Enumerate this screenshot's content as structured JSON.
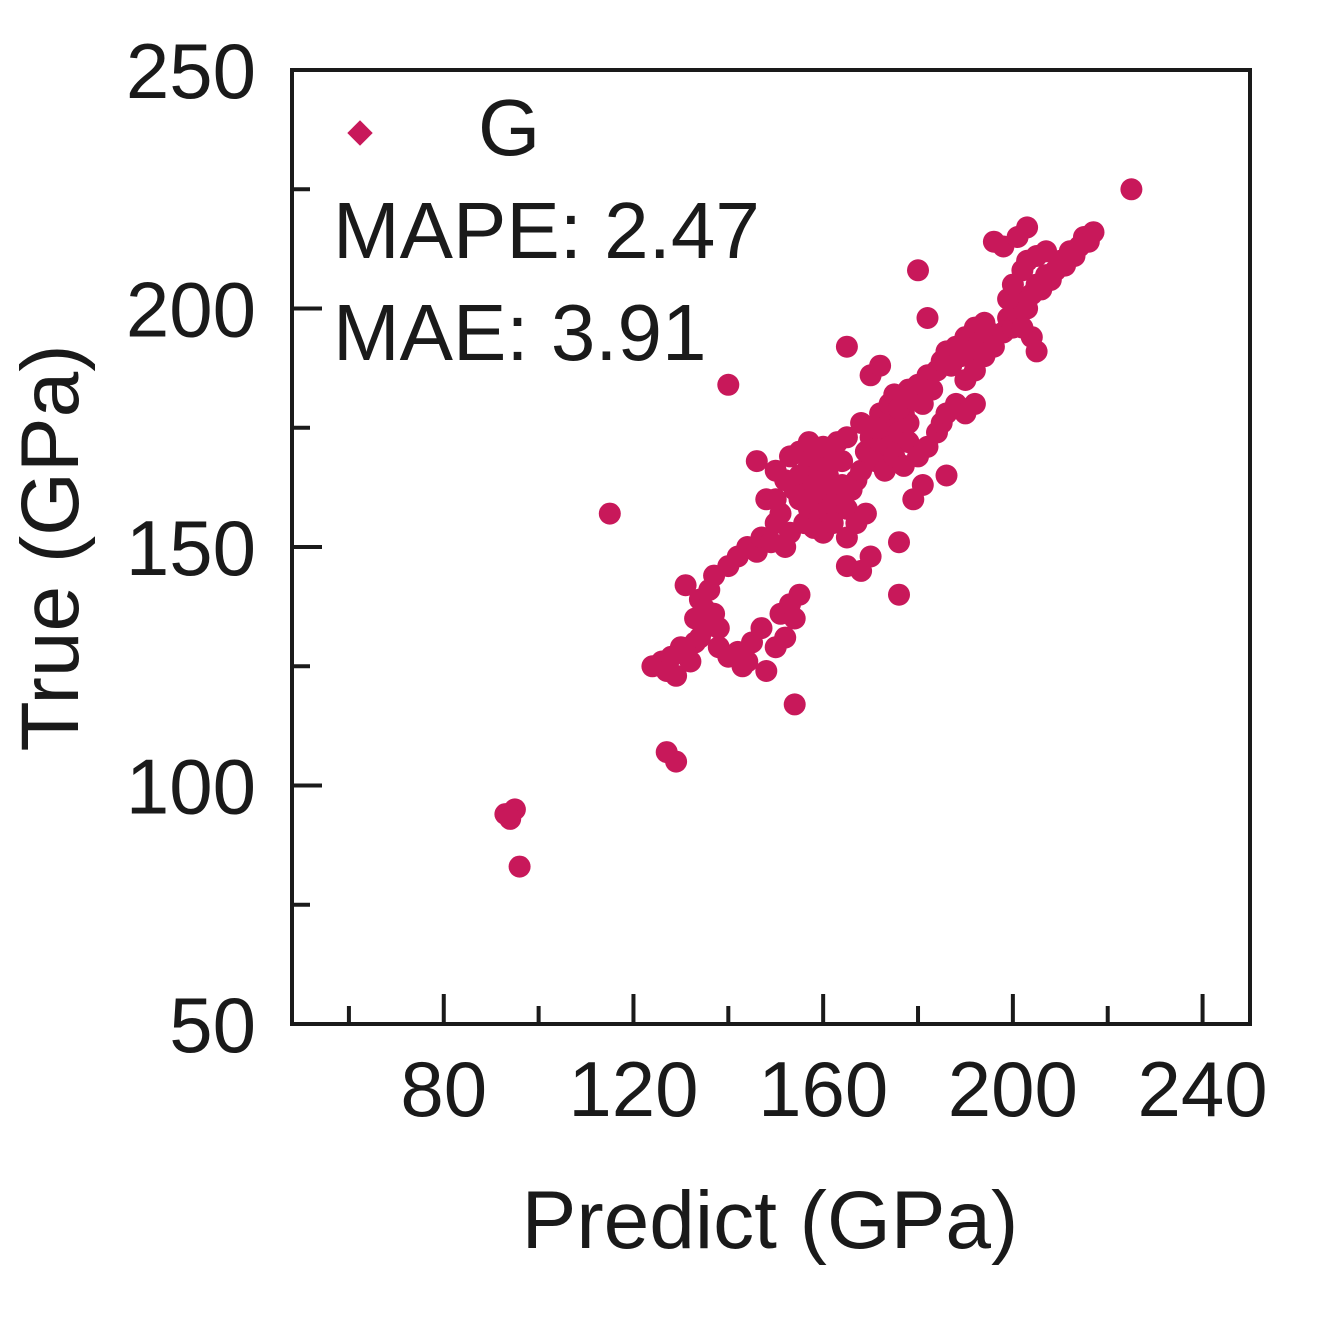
{
  "chart_data": {
    "type": "scatter",
    "xlabel": "Predict (GPa)",
    "ylabel": "True (GPa)",
    "xlim": [
      48,
      250
    ],
    "ylim": [
      50,
      250
    ],
    "xticks": [
      80,
      120,
      160,
      200,
      240
    ],
    "xticks_minor": [
      60,
      100,
      140,
      180,
      220
    ],
    "yticks": [
      50,
      100,
      150,
      200,
      250
    ],
    "yticks_minor": [
      75,
      125,
      175,
      225
    ],
    "grid": false,
    "legend": {
      "position": "top-left",
      "entries": [
        {
          "label": "G",
          "color": "#c8185a",
          "marker": "diamond"
        }
      ]
    },
    "annotations": [
      "MAPE: 2.47",
      "MAE: 3.91"
    ],
    "series": [
      {
        "name": "G",
        "color": "#c8185a",
        "points": [
          [
            93,
            94
          ],
          [
            95,
            95
          ],
          [
            96,
            83
          ],
          [
            94,
            93
          ],
          [
            127,
            107
          ],
          [
            129,
            105
          ],
          [
            115,
            157
          ],
          [
            140,
            184
          ],
          [
            154,
            117
          ],
          [
            124,
            125
          ],
          [
            126,
            126
          ],
          [
            127,
            124
          ],
          [
            128,
            127
          ],
          [
            129,
            123
          ],
          [
            130,
            129
          ],
          [
            131,
            128
          ],
          [
            132,
            126
          ],
          [
            133,
            130
          ],
          [
            134,
            131
          ],
          [
            135,
            133
          ],
          [
            131,
            142
          ],
          [
            134,
            139
          ],
          [
            135,
            137
          ],
          [
            136,
            141
          ],
          [
            137,
            136
          ],
          [
            133,
            135
          ],
          [
            138,
            133
          ],
          [
            138,
            129
          ],
          [
            140,
            127
          ],
          [
            142,
            128
          ],
          [
            143,
            125
          ],
          [
            144,
            126
          ],
          [
            145,
            130
          ],
          [
            147,
            133
          ],
          [
            148,
            124
          ],
          [
            150,
            129
          ],
          [
            152,
            131
          ],
          [
            151,
            136
          ],
          [
            153,
            138
          ],
          [
            155,
            140
          ],
          [
            154,
            135
          ],
          [
            137,
            144
          ],
          [
            140,
            146
          ],
          [
            142,
            148
          ],
          [
            144,
            150
          ],
          [
            146,
            149
          ],
          [
            147,
            152
          ],
          [
            149,
            151
          ],
          [
            150,
            155
          ],
          [
            152,
            150
          ],
          [
            153,
            153
          ],
          [
            151,
            157
          ],
          [
            146,
            168
          ],
          [
            148,
            160
          ],
          [
            150,
            160
          ],
          [
            152,
            164
          ],
          [
            154,
            162
          ],
          [
            155,
            165
          ],
          [
            156,
            161
          ],
          [
            157,
            167
          ],
          [
            158,
            163
          ],
          [
            159,
            166
          ],
          [
            160,
            168
          ],
          [
            150,
            166
          ],
          [
            153,
            169
          ],
          [
            155,
            170
          ],
          [
            157,
            172
          ],
          [
            158,
            169
          ],
          [
            160,
            171
          ],
          [
            161,
            165
          ],
          [
            162,
            170
          ],
          [
            163,
            172
          ],
          [
            164,
            168
          ],
          [
            165,
            173
          ],
          [
            155,
            160
          ],
          [
            157,
            158
          ],
          [
            159,
            160
          ],
          [
            160,
            157
          ],
          [
            161,
            162
          ],
          [
            162,
            159
          ],
          [
            163,
            161
          ],
          [
            164,
            163
          ],
          [
            165,
            158
          ],
          [
            166,
            162
          ],
          [
            167,
            164
          ],
          [
            156,
            155
          ],
          [
            158,
            154
          ],
          [
            160,
            153
          ],
          [
            162,
            155
          ],
          [
            165,
            146
          ],
          [
            165,
            152
          ],
          [
            168,
            145
          ],
          [
            167,
            155
          ],
          [
            170,
            148
          ],
          [
            169,
            157
          ],
          [
            168,
            166
          ],
          [
            169,
            170
          ],
          [
            170,
            173
          ],
          [
            171,
            168
          ],
          [
            172,
            172
          ],
          [
            173,
            175
          ],
          [
            174,
            171
          ],
          [
            175,
            176
          ],
          [
            176,
            174
          ],
          [
            177,
            178
          ],
          [
            178,
            176
          ],
          [
            172,
            178
          ],
          [
            174,
            180
          ],
          [
            175,
            182
          ],
          [
            176,
            179
          ],
          [
            178,
            183
          ],
          [
            179,
            181
          ],
          [
            180,
            184
          ],
          [
            181,
            180
          ],
          [
            182,
            186
          ],
          [
            183,
            183
          ],
          [
            184,
            187
          ],
          [
            178,
            172
          ],
          [
            180,
            169
          ],
          [
            182,
            171
          ],
          [
            184,
            174
          ],
          [
            185,
            176
          ],
          [
            186,
            178
          ],
          [
            188,
            180
          ],
          [
            186,
            165
          ],
          [
            181,
            163
          ],
          [
            176,
            151
          ],
          [
            176,
            140
          ],
          [
            170,
            186
          ],
          [
            172,
            188
          ],
          [
            165,
            192
          ],
          [
            168,
            176
          ],
          [
            171,
            175
          ],
          [
            173,
            166
          ],
          [
            175,
            169
          ],
          [
            177,
            167
          ],
          [
            179,
            160
          ],
          [
            185,
            189
          ],
          [
            186,
            191
          ],
          [
            187,
            188
          ],
          [
            188,
            192
          ],
          [
            189,
            190
          ],
          [
            190,
            194
          ],
          [
            191,
            191
          ],
          [
            192,
            196
          ],
          [
            193,
            193
          ],
          [
            194,
            197
          ],
          [
            195,
            195
          ],
          [
            190,
            185
          ],
          [
            192,
            187
          ],
          [
            194,
            190
          ],
          [
            196,
            192
          ],
          [
            198,
            195
          ],
          [
            199,
            198
          ],
          [
            200,
            196
          ],
          [
            201,
            199
          ],
          [
            202,
            202
          ],
          [
            203,
            200
          ],
          [
            204,
            203
          ],
          [
            205,
            205
          ],
          [
            206,
            204
          ],
          [
            207,
            207
          ],
          [
            208,
            206
          ],
          [
            209,
            208
          ],
          [
            210,
            210
          ],
          [
            211,
            209
          ],
          [
            212,
            212
          ],
          [
            213,
            211
          ],
          [
            214,
            213
          ],
          [
            215,
            215
          ],
          [
            216,
            214
          ],
          [
            217,
            216
          ],
          [
            199,
            202
          ],
          [
            200,
            205
          ],
          [
            202,
            208
          ],
          [
            203,
            210
          ],
          [
            205,
            211
          ],
          [
            207,
            212
          ],
          [
            196,
            214
          ],
          [
            198,
            213
          ],
          [
            203,
            217
          ],
          [
            201,
            215
          ],
          [
            180,
            208
          ],
          [
            182,
            198
          ],
          [
            204,
            194
          ],
          [
            205,
            191
          ],
          [
            202,
            196
          ],
          [
            192,
            180
          ],
          [
            190,
            178
          ],
          [
            225,
            225
          ]
        ]
      }
    ]
  }
}
